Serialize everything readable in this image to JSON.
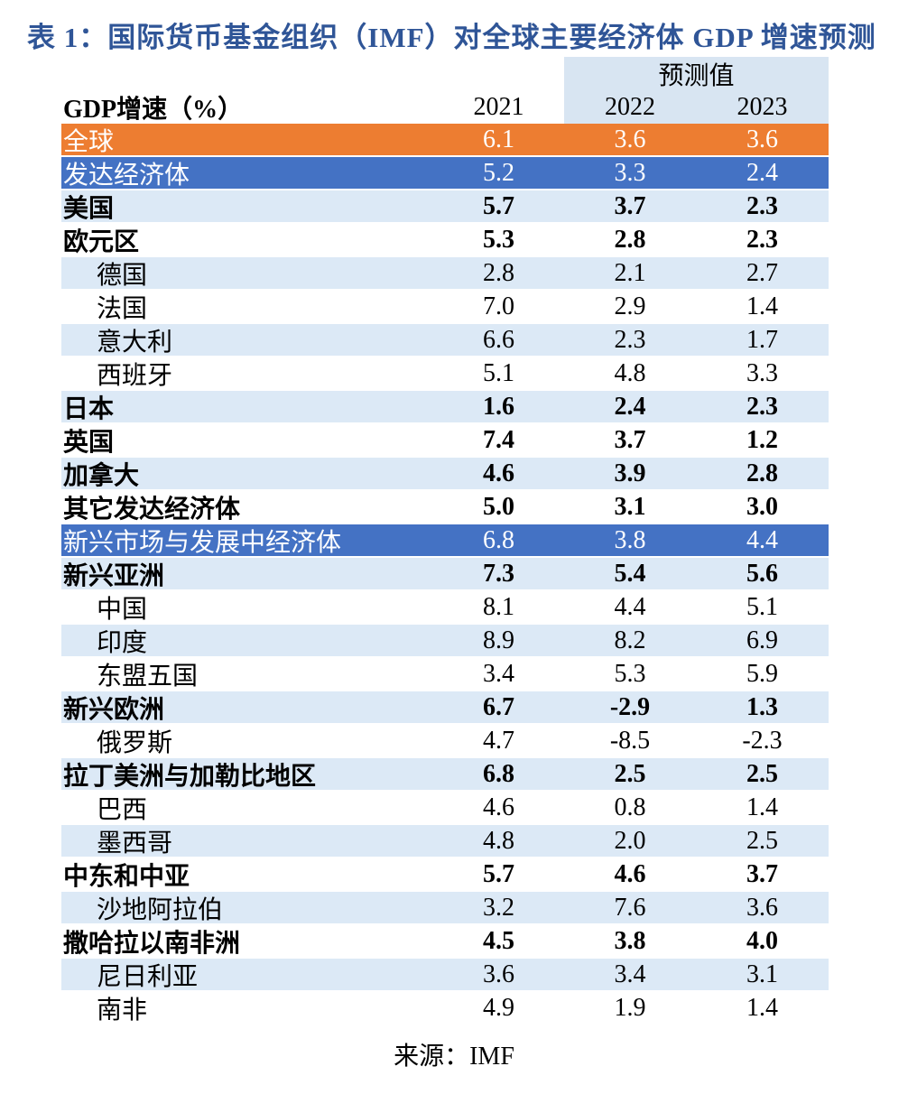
{
  "title": "表 1：国际货币基金组织（IMF）对全球主要经济体 GDP 增速预测",
  "table": {
    "col_header": "GDP增速（%）",
    "forecast_label": "预测值",
    "years": [
      "2021",
      "2022",
      "2023"
    ],
    "rows": [
      {
        "label": "全球",
        "values": [
          "6.1",
          "3.6",
          "3.6"
        ],
        "bg": "orange",
        "bold": false,
        "indent": false
      },
      {
        "label": "发达经济体",
        "values": [
          "5.2",
          "3.3",
          "2.4"
        ],
        "bg": "blue",
        "bold": false,
        "indent": false
      },
      {
        "label": "美国",
        "values": [
          "5.7",
          "3.7",
          "2.3"
        ],
        "bg": "lightblue",
        "bold": true,
        "indent": false
      },
      {
        "label": "欧元区",
        "values": [
          "5.3",
          "2.8",
          "2.3"
        ],
        "bg": "white",
        "bold": true,
        "indent": false
      },
      {
        "label": "德国",
        "values": [
          "2.8",
          "2.1",
          "2.7"
        ],
        "bg": "lightblue",
        "bold": false,
        "indent": true
      },
      {
        "label": "法国",
        "values": [
          "7.0",
          "2.9",
          "1.4"
        ],
        "bg": "white",
        "bold": false,
        "indent": true
      },
      {
        "label": "意大利",
        "values": [
          "6.6",
          "2.3",
          "1.7"
        ],
        "bg": "lightblue",
        "bold": false,
        "indent": true
      },
      {
        "label": "西班牙",
        "values": [
          "5.1",
          "4.8",
          "3.3"
        ],
        "bg": "white",
        "bold": false,
        "indent": true
      },
      {
        "label": "日本",
        "values": [
          "1.6",
          "2.4",
          "2.3"
        ],
        "bg": "lightblue",
        "bold": true,
        "indent": false
      },
      {
        "label": "英国",
        "values": [
          "7.4",
          "3.7",
          "1.2"
        ],
        "bg": "white",
        "bold": true,
        "indent": false
      },
      {
        "label": "加拿大",
        "values": [
          "4.6",
          "3.9",
          "2.8"
        ],
        "bg": "lightblue",
        "bold": true,
        "indent": false
      },
      {
        "label": "其它发达经济体",
        "values": [
          "5.0",
          "3.1",
          "3.0"
        ],
        "bg": "white",
        "bold": true,
        "indent": false
      },
      {
        "label": "新兴市场与发展中经济体",
        "values": [
          "6.8",
          "3.8",
          "4.4"
        ],
        "bg": "blue",
        "bold": false,
        "indent": false
      },
      {
        "label": "新兴亚洲",
        "values": [
          "7.3",
          "5.4",
          "5.6"
        ],
        "bg": "lightblue",
        "bold": true,
        "indent": false
      },
      {
        "label": "中国",
        "values": [
          "8.1",
          "4.4",
          "5.1"
        ],
        "bg": "white",
        "bold": false,
        "indent": true
      },
      {
        "label": "印度",
        "values": [
          "8.9",
          "8.2",
          "6.9"
        ],
        "bg": "lightblue",
        "bold": false,
        "indent": true
      },
      {
        "label": "东盟五国",
        "values": [
          "3.4",
          "5.3",
          "5.9"
        ],
        "bg": "white",
        "bold": false,
        "indent": true
      },
      {
        "label": "新兴欧洲",
        "values": [
          "6.7",
          "-2.9",
          "1.3"
        ],
        "bg": "lightblue",
        "bold": true,
        "indent": false
      },
      {
        "label": "俄罗斯",
        "values": [
          "4.7",
          "-8.5",
          "-2.3"
        ],
        "bg": "white",
        "bold": false,
        "indent": true
      },
      {
        "label": "拉丁美洲与加勒比地区",
        "values": [
          "6.8",
          "2.5",
          "2.5"
        ],
        "bg": "lightblue",
        "bold": true,
        "indent": false
      },
      {
        "label": "巴西",
        "values": [
          "4.6",
          "0.8",
          "1.4"
        ],
        "bg": "white",
        "bold": false,
        "indent": true
      },
      {
        "label": "墨西哥",
        "values": [
          "4.8",
          "2.0",
          "2.5"
        ],
        "bg": "lightblue",
        "bold": false,
        "indent": true
      },
      {
        "label": "中东和中亚",
        "values": [
          "5.7",
          "4.6",
          "3.7"
        ],
        "bg": "white",
        "bold": true,
        "indent": false
      },
      {
        "label": "沙地阿拉伯",
        "values": [
          "3.2",
          "7.6",
          "3.6"
        ],
        "bg": "lightblue",
        "bold": false,
        "indent": true
      },
      {
        "label": "撒哈拉以南非洲",
        "values": [
          "4.5",
          "3.8",
          "4.0"
        ],
        "bg": "white",
        "bold": true,
        "indent": false
      },
      {
        "label": "尼日利亚",
        "values": [
          "3.6",
          "3.4",
          "3.1"
        ],
        "bg": "lightblue",
        "bold": false,
        "indent": true
      },
      {
        "label": "南非",
        "values": [
          "4.9",
          "1.9",
          "1.4"
        ],
        "bg": "white",
        "bold": false,
        "indent": true
      }
    ]
  },
  "footer": "来源：IMF",
  "colors": {
    "title_blue": "#2F5597",
    "row_orange": "#ED7D31",
    "row_blue": "#4472C4",
    "row_lightblue": "#DCE9F6",
    "header_band": "#D8E5F2"
  }
}
